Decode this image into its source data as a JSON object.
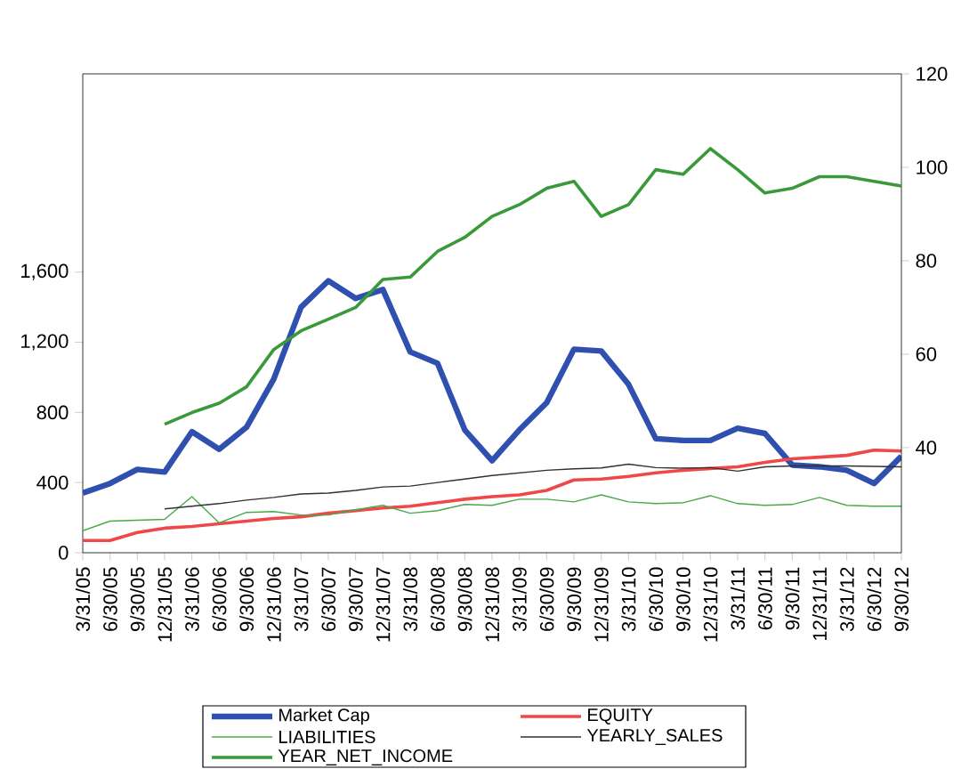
{
  "chart_data": {
    "type": "line",
    "categories": [
      "3/31/05",
      "6/30/05",
      "9/30/05",
      "12/31/05",
      "3/31/06",
      "6/30/06",
      "9/30/06",
      "12/31/06",
      "3/31/07",
      "6/30/07",
      "9/30/07",
      "12/31/07",
      "3/31/08",
      "6/30/08",
      "9/30/08",
      "12/31/08",
      "3/31/09",
      "6/30/09",
      "9/30/09",
      "12/31/09",
      "3/31/10",
      "6/30/10",
      "9/30/10",
      "12/31/10",
      "3/31/11",
      "6/30/11",
      "9/30/11",
      "12/31/11",
      "3/31/12",
      "6/30/12",
      "9/30/12"
    ],
    "series": [
      {
        "name": "Market Cap",
        "color": "#3050b0",
        "values": [
          340,
          395,
          475,
          460,
          690,
          590,
          715,
          990,
          1400,
          1550,
          1450,
          1500,
          1145,
          1080,
          700,
          525,
          700,
          855,
          1160,
          1150,
          960,
          650,
          640,
          640,
          710,
          680,
          500,
          490,
          470,
          395,
          550
        ]
      },
      {
        "name": "EQUITY",
        "color": "#f04848",
        "values": [
          70,
          70,
          115,
          140,
          150,
          165,
          180,
          195,
          205,
          225,
          240,
          255,
          265,
          285,
          305,
          320,
          330,
          355,
          415,
          420,
          435,
          455,
          470,
          480,
          490,
          515,
          535,
          545,
          555,
          585,
          580
        ]
      },
      {
        "name": "LIABILITIES",
        "color": "#4aa84a",
        "values": [
          125,
          180,
          185,
          190,
          320,
          170,
          230,
          235,
          215,
          215,
          245,
          270,
          225,
          240,
          275,
          270,
          305,
          305,
          290,
          330,
          290,
          280,
          285,
          325,
          280,
          270,
          275,
          315,
          270,
          265,
          265
        ]
      },
      {
        "name": "YEARLY_SALES",
        "color": "#303030",
        "values": [
          null,
          null,
          null,
          250,
          265,
          280,
          300,
          315,
          335,
          340,
          355,
          375,
          380,
          400,
          420,
          440,
          455,
          470,
          478,
          483,
          505,
          485,
          482,
          485,
          465,
          490,
          495,
          495,
          495,
          492,
          490
        ]
      },
      {
        "name": "YEAR_NET_INCOME",
        "color": "#3a9a3a",
        "axis": "y2",
        "values": [
          null,
          null,
          null,
          45,
          47.5,
          49.5,
          53,
          61,
          65,
          67.5,
          70,
          76,
          76.5,
          82,
          85,
          89.5,
          92,
          95.5,
          97,
          89.5,
          92,
          99.5,
          98.5,
          104,
          99.5,
          94.5,
          95.5,
          98,
          98,
          97,
          96
        ]
      }
    ],
    "ylim": [
      0,
      2730
    ],
    "yticks": [
      0,
      400,
      800,
      {
        "value": 1200,
        "label": "1,200"
      },
      {
        "value": 1600,
        "label": "1,600"
      }
    ],
    "y2lim": [
      17.5,
      120
    ],
    "y2ticks": [
      40,
      60,
      80,
      100,
      120
    ],
    "legend": "bottom",
    "line_style": "solid"
  }
}
